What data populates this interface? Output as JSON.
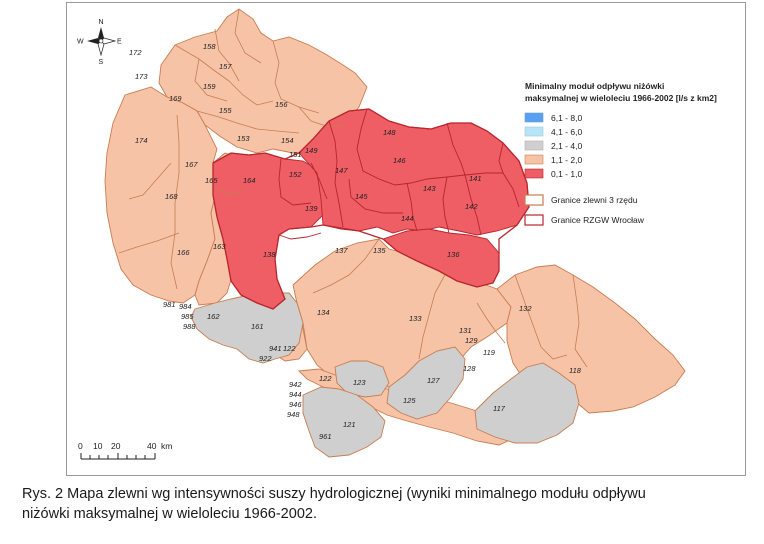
{
  "legend": {
    "title_line1": "Minimalny moduł odpływu  niżówki",
    "title_line2": "maksymalnej w wieloleciu 1966-2002 [l/s z km2]",
    "classes": [
      {
        "label": "6,1 - 8,0",
        "color": "#5aa0f2"
      },
      {
        "label": "4,1 - 6,0",
        "color": "#b8e4f8"
      },
      {
        "label": "2,1 - 4,0",
        "color": "#cfcfcf"
      },
      {
        "label": "1,1 - 2,0",
        "color": "#f7c3a7"
      },
      {
        "label": "0,1 - 1,0",
        "color": "#ef5e64"
      }
    ],
    "boundaries": [
      {
        "label": "Granice zlewni 3 rzędu",
        "color": "#c77d50"
      },
      {
        "label": "Granice RZGW Wrocław",
        "color": "#b8252c"
      }
    ]
  },
  "compass": {
    "n": "N",
    "s": "S",
    "e": "E",
    "w": "W"
  },
  "scale": {
    "ticks": [
      "0",
      "10",
      "20",
      "40"
    ],
    "unit": "km"
  },
  "basins": {
    "b158": "158",
    "b172": "172",
    "b157": "157",
    "b173": "173",
    "b159": "159",
    "b169": "169",
    "b155": "155",
    "b156": "156",
    "b174": "174",
    "b153": "153",
    "b154": "154",
    "b151": "151",
    "b149": "149",
    "b148": "148",
    "b167": "167",
    "b146": "146",
    "b147": "147",
    "b164": "164",
    "b152": "152",
    "b165": "165",
    "b141": "141",
    "b143": "143",
    "b145": "145",
    "b168": "168",
    "b139": "139",
    "b142": "142",
    "b144": "144",
    "b163": "163",
    "b137": "137",
    "b135": "135",
    "b166": "166",
    "b138": "138",
    "b136": "136",
    "b981": "981",
    "b984": "984",
    "b985": "985",
    "b988": "988",
    "b162": "162",
    "b134": "134",
    "b133": "133",
    "b132": "132",
    "b161": "161",
    "b131": "131",
    "b129": "129",
    "b941": "941",
    "b122a": "122",
    "b119": "119",
    "b922": "922",
    "b128": "128",
    "b118": "118",
    "b122b": "122",
    "b942": "942",
    "b123": "123",
    "b127": "127",
    "b944": "944",
    "b125": "125",
    "b946": "946",
    "b948": "948",
    "b117": "117",
    "b121": "121",
    "b961": "961"
  },
  "caption": {
    "line1": "Rys. 2 Mapa zlewni wg intensywności suszy hydrologicznej (wyniki minimalnego modułu odpływu",
    "line2": "niżówki maksymalnej w wieloleciu 1966-2002."
  }
}
